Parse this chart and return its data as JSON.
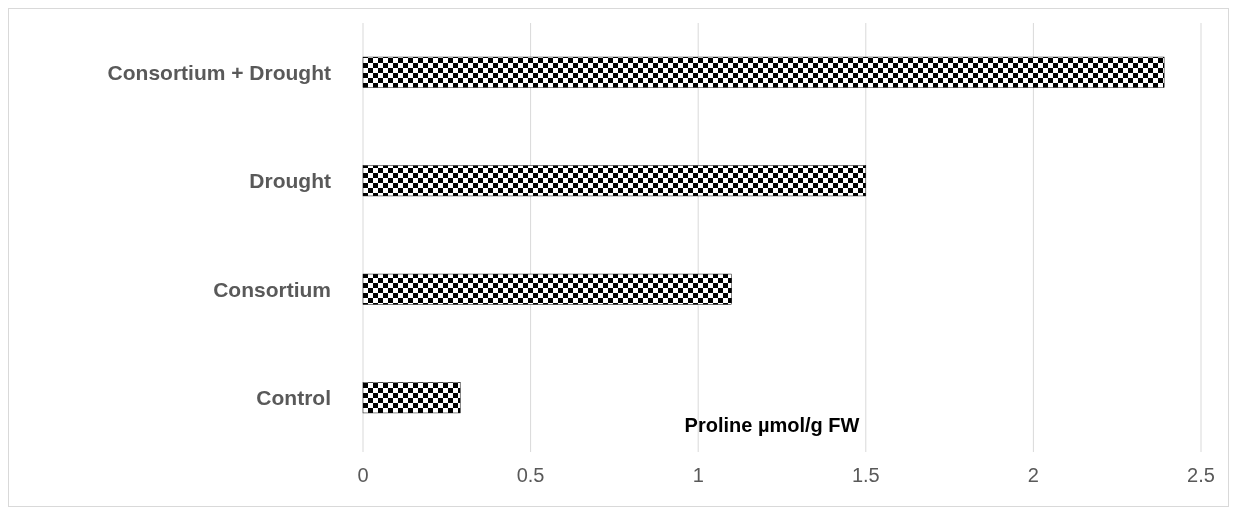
{
  "chart_data": {
    "type": "bar",
    "orientation": "horizontal",
    "categories": [
      "Consortium + Drought",
      "Drought",
      "Consortium",
      "Control"
    ],
    "values": [
      2.39,
      1.5,
      1.1,
      0.29
    ],
    "color": "#000000",
    "xlabel": "Proline µmol/g FW",
    "xlim": [
      0,
      2.5
    ],
    "xticks": [
      0,
      0.5,
      1,
      1.5,
      2,
      2.5
    ],
    "grid": "x"
  }
}
